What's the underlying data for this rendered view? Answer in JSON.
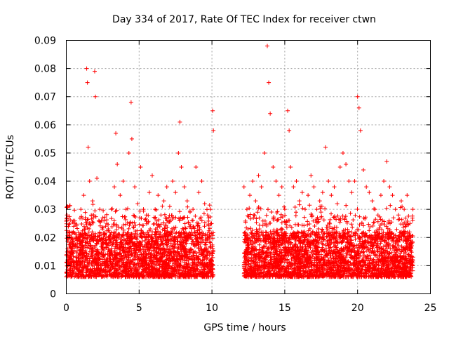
{
  "chart_data": {
    "type": "scatter",
    "title": "Day 334 of 2017, Rate Of TEC Index for receiver ctwn",
    "xlabel": "GPS time / hours",
    "ylabel": "ROTI / TECUs",
    "xlim": [
      0,
      25
    ],
    "ylim": [
      0,
      0.09
    ],
    "x_ticks": [
      0,
      5,
      10,
      15,
      20,
      25
    ],
    "y_ticks": [
      0,
      0.01,
      0.02,
      0.03,
      0.04,
      0.05,
      0.06,
      0.07,
      0.08,
      0.09
    ],
    "x_tick_labels": [
      "0",
      "5",
      "10",
      "15",
      "20",
      "25"
    ],
    "y_tick_labels": [
      "0",
      "0.01",
      "0.02",
      "0.03",
      "0.04",
      "0.05",
      "0.06",
      "0.07",
      "0.08",
      "0.09"
    ],
    "grid": true,
    "marker": "+",
    "marker_color": "#ff0000",
    "series": [
      {
        "x": [
          0.05,
          0.2,
          0.4,
          0.6,
          0.8,
          1.0,
          1.2,
          1.4,
          1.45,
          1.5,
          1.6,
          1.8,
          1.95,
          2.0,
          2.1,
          2.3,
          2.5,
          2.7,
          2.9,
          3.1,
          3.3,
          3.4,
          3.5,
          3.7,
          3.9,
          4.1,
          4.3,
          4.45,
          4.5,
          4.7,
          4.9,
          5.1,
          5.3,
          5.5,
          5.7,
          5.9,
          6.1,
          6.3,
          6.5,
          6.7,
          6.9,
          7.1,
          7.3,
          7.5,
          7.7,
          7.8,
          7.9,
          8.1,
          8.3,
          8.5,
          8.7,
          8.9,
          9.1,
          9.3,
          9.5,
          9.7,
          9.9,
          10.05,
          10.1,
          12.2,
          12.4,
          12.6,
          12.8,
          13.0,
          13.2,
          13.4,
          13.6,
          13.8,
          13.9,
          14.0,
          14.2,
          14.4,
          14.6,
          14.8,
          15.0,
          15.2,
          15.3,
          15.4,
          15.6,
          15.8,
          16.0,
          16.2,
          16.4,
          16.6,
          16.8,
          17.0,
          17.2,
          17.4,
          17.6,
          17.8,
          18.0,
          18.2,
          18.4,
          18.6,
          18.8,
          19.0,
          19.2,
          19.4,
          19.6,
          19.8,
          20.0,
          20.1,
          20.2,
          20.4,
          20.6,
          20.8,
          21.0,
          21.2,
          21.4,
          21.6,
          21.8,
          22.0,
          22.2,
          22.4,
          22.6,
          22.8,
          23.0,
          23.2,
          23.4,
          23.6,
          23.8
        ],
        "y": [
          0.028,
          0.022,
          0.018,
          0.025,
          0.02,
          0.03,
          0.035,
          0.08,
          0.075,
          0.052,
          0.04,
          0.033,
          0.079,
          0.07,
          0.041,
          0.03,
          0.027,
          0.024,
          0.02,
          0.03,
          0.038,
          0.057,
          0.046,
          0.035,
          0.04,
          0.03,
          0.05,
          0.068,
          0.055,
          0.038,
          0.032,
          0.045,
          0.03,
          0.028,
          0.036,
          0.042,
          0.03,
          0.035,
          0.028,
          0.033,
          0.038,
          0.031,
          0.04,
          0.036,
          0.05,
          0.061,
          0.045,
          0.038,
          0.033,
          0.029,
          0.03,
          0.045,
          0.036,
          0.04,
          0.032,
          0.028,
          0.03,
          0.065,
          0.058,
          0.038,
          0.03,
          0.035,
          0.04,
          0.033,
          0.042,
          0.038,
          0.05,
          0.088,
          0.075,
          0.064,
          0.045,
          0.04,
          0.035,
          0.038,
          0.03,
          0.065,
          0.058,
          0.045,
          0.038,
          0.04,
          0.033,
          0.036,
          0.03,
          0.035,
          0.042,
          0.038,
          0.03,
          0.033,
          0.036,
          0.052,
          0.04,
          0.035,
          0.038,
          0.032,
          0.045,
          0.05,
          0.046,
          0.04,
          0.036,
          0.04,
          0.07,
          0.066,
          0.058,
          0.044,
          0.038,
          0.036,
          0.033,
          0.03,
          0.028,
          0.035,
          0.04,
          0.047,
          0.038,
          0.035,
          0.03,
          0.028,
          0.033,
          0.03,
          0.035,
          0.025,
          0.03
        ]
      }
    ]
  }
}
